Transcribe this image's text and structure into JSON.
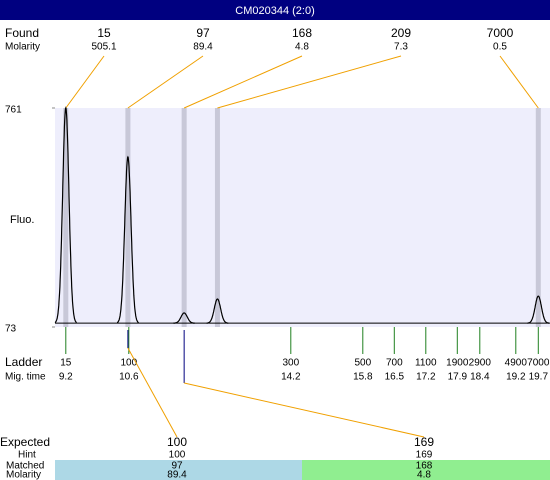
{
  "title": "CM020344 (2:0)",
  "found": {
    "label": "Found",
    "sublabel": "Molarity",
    "peaks": [
      {
        "size": 15,
        "molarity": 505.1,
        "time": 9.2,
        "height": 761
      },
      {
        "size": 97,
        "molarity": 89.4,
        "time": 10.58,
        "height": 607
      },
      {
        "size": 168,
        "molarity": 4.8,
        "time": 11.83,
        "height": 117
      },
      {
        "size": 209,
        "molarity": 7.3,
        "time": 12.57,
        "height": 161
      },
      {
        "size": 7000,
        "molarity": 0.5,
        "time": 19.7,
        "height": 170
      }
    ]
  },
  "plot": {
    "ylabel": "Fluo.",
    "ylim": [
      73,
      761
    ],
    "yticks": [
      73,
      761
    ],
    "xlim": [
      8.96,
      19.96
    ],
    "baseline": 85
  },
  "ladder": {
    "label": "Ladder",
    "sublabel": "Mig. time",
    "sizes": [
      15,
      100,
      300,
      500,
      700,
      1100,
      1900,
      2900,
      4900,
      7000
    ],
    "times": [
      9.2,
      10.6,
      14.2,
      15.8,
      16.5,
      17.2,
      17.9,
      18.4,
      19.2,
      19.7
    ]
  },
  "expected": {
    "labels": [
      "Expected",
      "Hint",
      "Matched",
      "Molarity"
    ],
    "items": [
      {
        "expected": 100,
        "hint": 100,
        "matched": 97,
        "molarity": 89.4
      },
      {
        "expected": 169,
        "hint": 169,
        "matched": 168,
        "molarity": 4.8
      }
    ]
  }
}
